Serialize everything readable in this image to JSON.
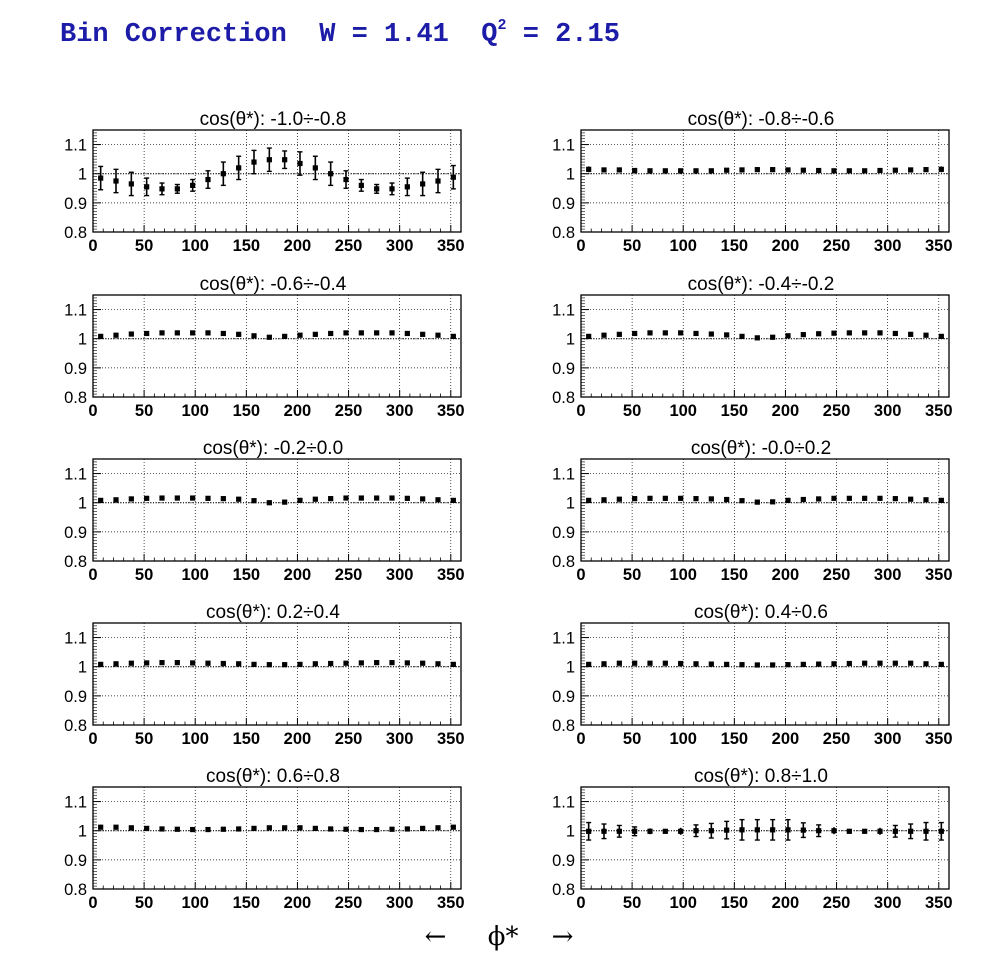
{
  "title": {
    "prefix": "Bin Correction",
    "w_label": "W = 1.41",
    "q_label": "Q",
    "q_sup": "2",
    "q_value": "= 2.15"
  },
  "xaxis_caption": {
    "left_arrow": "←",
    "symbol": "ϕ*",
    "right_arrow": "→"
  },
  "colors": {
    "title": "#1c1ca8",
    "marker": "#000000",
    "grid": "#000000",
    "reference_line": "#000000"
  },
  "chart_data": [
    {
      "type": "scatter",
      "title": "cos(θ*): -1.0÷-0.8",
      "xlabel": "ϕ*",
      "ylabel": "",
      "xlim": [
        0,
        360
      ],
      "ylim": [
        0.8,
        1.15
      ],
      "xticks": [
        0,
        50,
        100,
        150,
        200,
        250,
        300,
        350
      ],
      "yticks": [
        0.8,
        0.9,
        1,
        1.1
      ],
      "x": [
        7.5,
        22.5,
        37.5,
        52.5,
        67.5,
        82.5,
        97.5,
        112.5,
        127.5,
        142.5,
        157.5,
        172.5,
        187.5,
        202.5,
        217.5,
        232.5,
        247.5,
        262.5,
        277.5,
        292.5,
        307.5,
        322.5,
        337.5,
        352.5
      ],
      "y": [
        0.985,
        0.975,
        0.965,
        0.955,
        0.948,
        0.948,
        0.96,
        0.98,
        1.0,
        1.02,
        1.04,
        1.048,
        1.048,
        1.035,
        1.02,
        1.0,
        0.98,
        0.96,
        0.948,
        0.948,
        0.955,
        0.965,
        0.975,
        0.988
      ],
      "errors": [
        0.04,
        0.04,
        0.04,
        0.03,
        0.02,
        0.015,
        0.02,
        0.03,
        0.04,
        0.04,
        0.04,
        0.04,
        0.03,
        0.04,
        0.04,
        0.04,
        0.03,
        0.02,
        0.015,
        0.02,
        0.03,
        0.04,
        0.04,
        0.04
      ],
      "reference_line": 1
    },
    {
      "type": "scatter",
      "title": "cos(θ*): -0.8÷-0.6",
      "xlabel": "ϕ*",
      "ylabel": "",
      "xlim": [
        0,
        360
      ],
      "ylim": [
        0.8,
        1.15
      ],
      "xticks": [
        0,
        50,
        100,
        150,
        200,
        250,
        300,
        350
      ],
      "yticks": [
        0.8,
        0.9,
        1,
        1.1
      ],
      "x": [
        7.5,
        22.5,
        37.5,
        52.5,
        67.5,
        82.5,
        97.5,
        112.5,
        127.5,
        142.5,
        157.5,
        172.5,
        187.5,
        202.5,
        217.5,
        232.5,
        247.5,
        262.5,
        277.5,
        292.5,
        307.5,
        322.5,
        337.5,
        352.5
      ],
      "y": [
        1.015,
        1.013,
        1.013,
        1.011,
        1.01,
        1.01,
        1.01,
        1.01,
        1.01,
        1.012,
        1.013,
        1.014,
        1.014,
        1.013,
        1.012,
        1.011,
        1.01,
        1.01,
        1.01,
        1.011,
        1.012,
        1.013,
        1.014,
        1.015
      ],
      "errors": [
        0.01,
        0.006,
        0.006,
        0.005,
        0.004,
        0.004,
        0.004,
        0.004,
        0.004,
        0.005,
        0.005,
        0.005,
        0.005,
        0.005,
        0.005,
        0.004,
        0.004,
        0.004,
        0.004,
        0.004,
        0.005,
        0.005,
        0.006,
        0.01
      ],
      "reference_line": 1
    },
    {
      "type": "scatter",
      "title": "cos(θ*): -0.6÷-0.4",
      "xlabel": "ϕ*",
      "ylabel": "",
      "xlim": [
        0,
        360
      ],
      "ylim": [
        0.8,
        1.15
      ],
      "xticks": [
        0,
        50,
        100,
        150,
        200,
        250,
        300,
        350
      ],
      "yticks": [
        0.8,
        0.9,
        1,
        1.1
      ],
      "x": [
        7.5,
        22.5,
        37.5,
        52.5,
        67.5,
        82.5,
        97.5,
        112.5,
        127.5,
        142.5,
        157.5,
        172.5,
        187.5,
        202.5,
        217.5,
        232.5,
        247.5,
        262.5,
        277.5,
        292.5,
        307.5,
        322.5,
        337.5,
        352.5
      ],
      "y": [
        1.008,
        1.012,
        1.016,
        1.018,
        1.02,
        1.02,
        1.02,
        1.02,
        1.018,
        1.015,
        1.01,
        1.005,
        1.008,
        1.012,
        1.015,
        1.018,
        1.02,
        1.02,
        1.02,
        1.02,
        1.018,
        1.015,
        1.012,
        1.008
      ],
      "errors": [
        0.004,
        0.004,
        0.004,
        0.004,
        0.004,
        0.004,
        0.004,
        0.004,
        0.004,
        0.004,
        0.004,
        0.007,
        0.007,
        0.004,
        0.004,
        0.004,
        0.004,
        0.004,
        0.004,
        0.004,
        0.004,
        0.004,
        0.004,
        0.004
      ],
      "reference_line": 1
    },
    {
      "type": "scatter",
      "title": "cos(θ*): -0.4÷-0.2",
      "xlabel": "ϕ*",
      "ylabel": "",
      "xlim": [
        0,
        360
      ],
      "ylim": [
        0.8,
        1.15
      ],
      "xticks": [
        0,
        50,
        100,
        150,
        200,
        250,
        300,
        350
      ],
      "yticks": [
        0.8,
        0.9,
        1,
        1.1
      ],
      "x": [
        7.5,
        22.5,
        37.5,
        52.5,
        67.5,
        82.5,
        97.5,
        112.5,
        127.5,
        142.5,
        157.5,
        172.5,
        187.5,
        202.5,
        217.5,
        232.5,
        247.5,
        262.5,
        277.5,
        292.5,
        307.5,
        322.5,
        337.5,
        352.5
      ],
      "y": [
        1.008,
        1.012,
        1.015,
        1.018,
        1.02,
        1.02,
        1.02,
        1.018,
        1.016,
        1.013,
        1.008,
        1.003,
        1.005,
        1.01,
        1.014,
        1.017,
        1.019,
        1.02,
        1.02,
        1.02,
        1.018,
        1.015,
        1.012,
        1.008
      ],
      "errors": [
        0.004,
        0.004,
        0.004,
        0.004,
        0.004,
        0.004,
        0.004,
        0.004,
        0.004,
        0.004,
        0.005,
        0.007,
        0.007,
        0.004,
        0.004,
        0.004,
        0.004,
        0.004,
        0.004,
        0.004,
        0.004,
        0.004,
        0.004,
        0.004
      ],
      "reference_line": 1
    },
    {
      "type": "scatter",
      "title": "cos(θ*): -0.2÷0.0",
      "xlabel": "ϕ*",
      "ylabel": "",
      "xlim": [
        0,
        360
      ],
      "ylim": [
        0.8,
        1.15
      ],
      "xticks": [
        0,
        50,
        100,
        150,
        200,
        250,
        300,
        350
      ],
      "yticks": [
        0.8,
        0.9,
        1,
        1.1
      ],
      "x": [
        7.5,
        22.5,
        37.5,
        52.5,
        67.5,
        82.5,
        97.5,
        112.5,
        127.5,
        142.5,
        157.5,
        172.5,
        187.5,
        202.5,
        217.5,
        232.5,
        247.5,
        262.5,
        277.5,
        292.5,
        307.5,
        322.5,
        337.5,
        352.5
      ],
      "y": [
        1.008,
        1.01,
        1.013,
        1.015,
        1.016,
        1.016,
        1.016,
        1.015,
        1.014,
        1.012,
        1.007,
        1.0,
        1.002,
        1.008,
        1.012,
        1.014,
        1.016,
        1.016,
        1.016,
        1.016,
        1.015,
        1.013,
        1.01,
        1.008
      ],
      "errors": [
        0.004,
        0.004,
        0.004,
        0.004,
        0.004,
        0.004,
        0.004,
        0.004,
        0.004,
        0.004,
        0.005,
        0.006,
        0.006,
        0.004,
        0.004,
        0.004,
        0.004,
        0.004,
        0.004,
        0.004,
        0.004,
        0.004,
        0.004,
        0.004
      ],
      "reference_line": 1
    },
    {
      "type": "scatter",
      "title": "cos(θ*): -0.0÷0.2",
      "xlabel": "ϕ*",
      "ylabel": "",
      "xlim": [
        0,
        360
      ],
      "ylim": [
        0.8,
        1.15
      ],
      "xticks": [
        0,
        50,
        100,
        150,
        200,
        250,
        300,
        350
      ],
      "yticks": [
        0.8,
        0.9,
        1,
        1.1
      ],
      "x": [
        7.5,
        22.5,
        37.5,
        52.5,
        67.5,
        82.5,
        97.5,
        112.5,
        127.5,
        142.5,
        157.5,
        172.5,
        187.5,
        202.5,
        217.5,
        232.5,
        247.5,
        262.5,
        277.5,
        292.5,
        307.5,
        322.5,
        337.5,
        352.5
      ],
      "y": [
        1.008,
        1.01,
        1.012,
        1.014,
        1.015,
        1.015,
        1.015,
        1.014,
        1.013,
        1.011,
        1.007,
        1.002,
        1.003,
        1.008,
        1.011,
        1.013,
        1.015,
        1.015,
        1.015,
        1.015,
        1.014,
        1.012,
        1.01,
        1.008
      ],
      "errors": [
        0.004,
        0.004,
        0.004,
        0.004,
        0.004,
        0.004,
        0.004,
        0.004,
        0.004,
        0.004,
        0.005,
        0.005,
        0.005,
        0.004,
        0.004,
        0.004,
        0.004,
        0.004,
        0.004,
        0.004,
        0.004,
        0.004,
        0.004,
        0.004
      ],
      "reference_line": 1
    },
    {
      "type": "scatter",
      "title": "cos(θ*): 0.2÷0.4",
      "xlabel": "ϕ*",
      "ylabel": "",
      "xlim": [
        0,
        360
      ],
      "ylim": [
        0.8,
        1.15
      ],
      "xticks": [
        0,
        50,
        100,
        150,
        200,
        250,
        300,
        350
      ],
      "yticks": [
        0.8,
        0.9,
        1,
        1.1
      ],
      "x": [
        7.5,
        22.5,
        37.5,
        52.5,
        67.5,
        82.5,
        97.5,
        112.5,
        127.5,
        142.5,
        157.5,
        172.5,
        187.5,
        202.5,
        217.5,
        232.5,
        247.5,
        262.5,
        277.5,
        292.5,
        307.5,
        322.5,
        337.5,
        352.5
      ],
      "y": [
        1.008,
        1.01,
        1.012,
        1.013,
        1.014,
        1.014,
        1.013,
        1.012,
        1.011,
        1.01,
        1.008,
        1.007,
        1.007,
        1.008,
        1.01,
        1.011,
        1.012,
        1.013,
        1.014,
        1.014,
        1.013,
        1.012,
        1.01,
        1.008
      ],
      "errors": [
        0.004,
        0.004,
        0.004,
        0.004,
        0.004,
        0.004,
        0.004,
        0.004,
        0.004,
        0.004,
        0.004,
        0.004,
        0.004,
        0.004,
        0.004,
        0.004,
        0.004,
        0.004,
        0.004,
        0.004,
        0.004,
        0.004,
        0.004,
        0.004
      ],
      "reference_line": 1
    },
    {
      "type": "scatter",
      "title": "cos(θ*): 0.4÷0.6",
      "xlabel": "ϕ*",
      "ylabel": "",
      "xlim": [
        0,
        360
      ],
      "ylim": [
        0.8,
        1.15
      ],
      "xticks": [
        0,
        50,
        100,
        150,
        200,
        250,
        300,
        350
      ],
      "yticks": [
        0.8,
        0.9,
        1,
        1.1
      ],
      "x": [
        7.5,
        22.5,
        37.5,
        52.5,
        67.5,
        82.5,
        97.5,
        112.5,
        127.5,
        142.5,
        157.5,
        172.5,
        187.5,
        202.5,
        217.5,
        232.5,
        247.5,
        262.5,
        277.5,
        292.5,
        307.5,
        322.5,
        337.5,
        352.5
      ],
      "y": [
        1.008,
        1.01,
        1.012,
        1.012,
        1.012,
        1.012,
        1.011,
        1.01,
        1.009,
        1.008,
        1.007,
        1.006,
        1.006,
        1.007,
        1.008,
        1.009,
        1.01,
        1.011,
        1.012,
        1.012,
        1.012,
        1.012,
        1.01,
        1.008
      ],
      "errors": [
        0.004,
        0.004,
        0.004,
        0.004,
        0.004,
        0.004,
        0.004,
        0.004,
        0.004,
        0.004,
        0.004,
        0.004,
        0.004,
        0.004,
        0.004,
        0.004,
        0.004,
        0.004,
        0.004,
        0.004,
        0.004,
        0.004,
        0.004,
        0.004
      ],
      "reference_line": 1
    },
    {
      "type": "scatter",
      "title": "cos(θ*): 0.6÷0.8",
      "xlabel": "ϕ*",
      "ylabel": "",
      "xlim": [
        0,
        360
      ],
      "ylim": [
        0.8,
        1.15
      ],
      "xticks": [
        0,
        50,
        100,
        150,
        200,
        250,
        300,
        350
      ],
      "yticks": [
        0.8,
        0.9,
        1,
        1.1
      ],
      "x": [
        7.5,
        22.5,
        37.5,
        52.5,
        67.5,
        82.5,
        97.5,
        112.5,
        127.5,
        142.5,
        157.5,
        172.5,
        187.5,
        202.5,
        217.5,
        232.5,
        247.5,
        262.5,
        277.5,
        292.5,
        307.5,
        322.5,
        337.5,
        352.5
      ],
      "y": [
        1.012,
        1.012,
        1.01,
        1.008,
        1.006,
        1.005,
        1.004,
        1.004,
        1.005,
        1.006,
        1.008,
        1.01,
        1.01,
        1.01,
        1.008,
        1.006,
        1.005,
        1.004,
        1.004,
        1.005,
        1.006,
        1.008,
        1.01,
        1.012
      ],
      "errors": [
        0.005,
        0.005,
        0.005,
        0.004,
        0.004,
        0.004,
        0.004,
        0.004,
        0.004,
        0.004,
        0.004,
        0.005,
        0.005,
        0.005,
        0.004,
        0.004,
        0.004,
        0.004,
        0.004,
        0.004,
        0.004,
        0.004,
        0.005,
        0.005
      ],
      "reference_line": 1
    },
    {
      "type": "scatter",
      "title": "cos(θ*): 0.8÷1.0",
      "xlabel": "ϕ*",
      "ylabel": "",
      "xlim": [
        0,
        360
      ],
      "ylim": [
        0.8,
        1.15
      ],
      "xticks": [
        0,
        50,
        100,
        150,
        200,
        250,
        300,
        350
      ],
      "yticks": [
        0.8,
        0.9,
        1,
        1.1
      ],
      "x": [
        7.5,
        22.5,
        37.5,
        52.5,
        67.5,
        82.5,
        97.5,
        112.5,
        127.5,
        142.5,
        157.5,
        172.5,
        187.5,
        202.5,
        217.5,
        232.5,
        247.5,
        262.5,
        277.5,
        292.5,
        307.5,
        322.5,
        337.5,
        352.5
      ],
      "y": [
        0.998,
        0.998,
        0.998,
        0.998,
        0.998,
        0.998,
        0.998,
        1.0,
        1.0,
        1.002,
        1.003,
        1.003,
        1.003,
        1.003,
        1.002,
        1.0,
        1.0,
        0.998,
        0.998,
        0.998,
        0.998,
        0.998,
        0.998,
        0.998
      ],
      "errors": [
        0.03,
        0.025,
        0.02,
        0.015,
        0.01,
        0.008,
        0.012,
        0.02,
        0.025,
        0.03,
        0.035,
        0.035,
        0.035,
        0.035,
        0.025,
        0.02,
        0.012,
        0.008,
        0.008,
        0.012,
        0.02,
        0.025,
        0.03,
        0.03
      ],
      "reference_line": 1
    }
  ]
}
